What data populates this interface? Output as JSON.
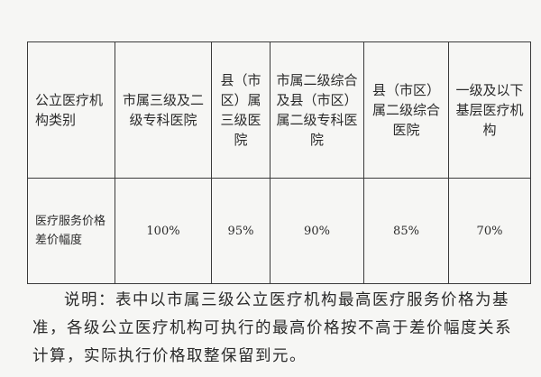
{
  "table": {
    "header": [
      "公立医疗机构类别",
      "市属三级及二级专科医院",
      "县（市区）属三级医院",
      "市属二级综合及县（市区）属二级专科医院",
      "县（市区）属二级综合医院",
      "一级及以下基层医疗机构"
    ],
    "row_label": "医疗服务价格差价幅度",
    "values": [
      "100%",
      "95%",
      "90%",
      "85%",
      "70%"
    ]
  },
  "note": "说明：表中以市属三级公立医疗机构最高医疗服务价格为基准，各级公立医疗机构可执行的最高价格按不高于差价幅度关系计算，实际执行价格取整保留到元。"
}
